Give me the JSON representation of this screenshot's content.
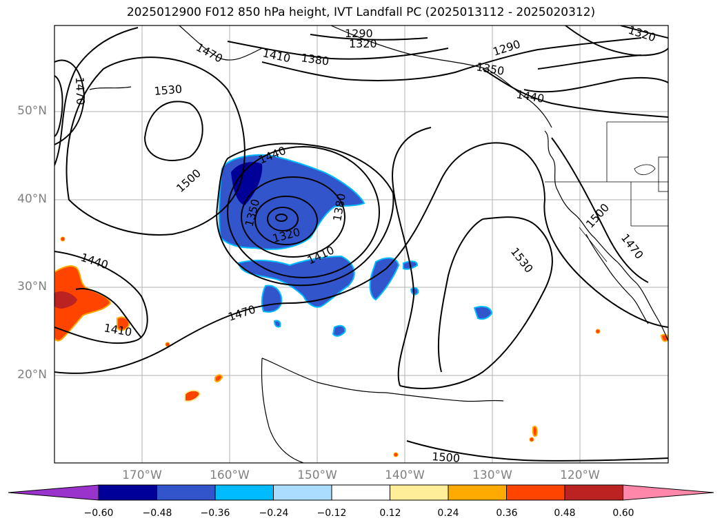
{
  "title": "2025012900 F012 850 hPa height, IVT Landfall PC (2025013112 - 2025020312)",
  "lat_labels": [
    "50°N",
    "40°N",
    "30°N",
    "20°N"
  ],
  "lon_labels": [
    "170°W",
    "160°W",
    "150°W",
    "140°W",
    "130°W",
    "120°W"
  ],
  "contour_labels": [
    "1290",
    "1320",
    "1380",
    "1410",
    "1470",
    "1530",
    "1470",
    "1500",
    "1440",
    "1350",
    "1380",
    "1320",
    "1410",
    "1470",
    "1440",
    "1410",
    "1290",
    "1350",
    "1440",
    "1500",
    "1470",
    "1530",
    "1500",
    "1320"
  ],
  "colorbar": {
    "tick_labels": [
      "−0.60",
      "−0.48",
      "−0.36",
      "−0.24",
      "−0.12",
      "0.12",
      "0.24",
      "0.36",
      "0.48",
      "0.60"
    ],
    "colors": [
      "#9933cc",
      "#000099",
      "#3355cc",
      "#00bbff",
      "#aaddff",
      "#ffffff",
      "#ffee99",
      "#ffaa00",
      "#ff4400",
      "#bb2222",
      "#ff88aa"
    ]
  }
}
